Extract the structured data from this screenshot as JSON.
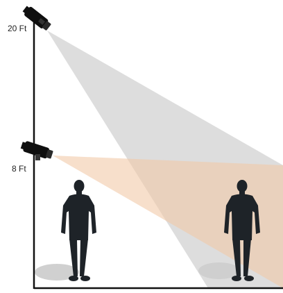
{
  "diagram": {
    "labels": {
      "high_mount": "20 Ft",
      "low_mount": "8 Ft"
    },
    "colors": {
      "wall": "#111111",
      "high_camera_view": "#cfcfcf",
      "low_camera_view": "#f1c9a8",
      "camera_body": "#0f0f0f",
      "silhouette": "#1e2328",
      "shadow": "#a9a9a9"
    }
  }
}
